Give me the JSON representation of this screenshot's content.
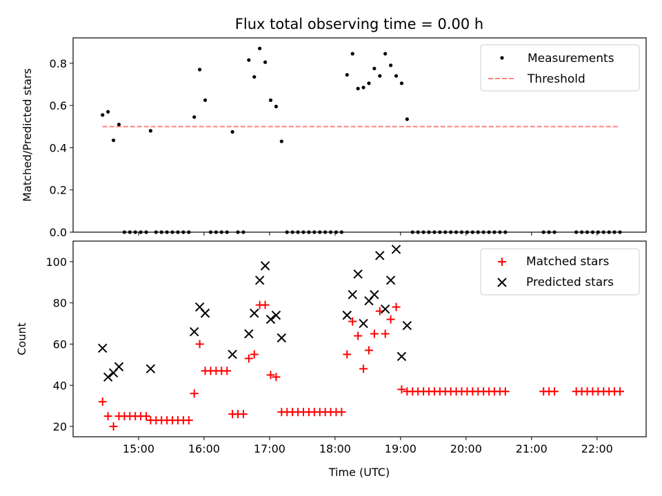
{
  "chart_data": [
    {
      "type": "scatter",
      "title": "Flux total observing time = 0.00 h",
      "ylabel": "Matched/Predicted stars",
      "xlabel": "",
      "xlim": [
        "14:00",
        "22:45"
      ],
      "ylim": [
        0,
        0.92
      ],
      "yticks": [
        "0.0",
        "0.2",
        "0.4",
        "0.6",
        "0.8"
      ],
      "legend": {
        "placement": "top-right",
        "entries": [
          "Measurements",
          "Threshold"
        ]
      },
      "threshold": {
        "value": 0.5,
        "x_start": "14:27",
        "x_end": "22:21",
        "color": "#ff7f7f"
      },
      "series": [
        {
          "name": "Measurements",
          "color": "#000000",
          "points": [
            [
              "14:27",
              0.555
            ],
            [
              "14:32",
              0.57
            ],
            [
              "14:37",
              0.435
            ],
            [
              "14:42",
              0.51
            ],
            [
              "14:47",
              0
            ],
            [
              "14:52",
              0
            ],
            [
              "14:57",
              0
            ],
            [
              "15:02",
              0
            ],
            [
              "15:07",
              0
            ],
            [
              "15:11",
              0.48
            ],
            [
              "15:16",
              0
            ],
            [
              "15:21",
              0
            ],
            [
              "15:26",
              0
            ],
            [
              "15:31",
              0
            ],
            [
              "15:36",
              0
            ],
            [
              "15:41",
              0
            ],
            [
              "15:46",
              0
            ],
            [
              "15:51",
              0.545
            ],
            [
              "15:56",
              0.77
            ],
            [
              "16:01",
              0.625
            ],
            [
              "16:06",
              0
            ],
            [
              "16:11",
              0
            ],
            [
              "16:16",
              0
            ],
            [
              "16:21",
              0
            ],
            [
              "16:26",
              0.475
            ],
            [
              "16:31",
              0
            ],
            [
              "16:36",
              0
            ],
            [
              "16:41",
              0.815
            ],
            [
              "16:46",
              0.735
            ],
            [
              "16:51",
              0.87
            ],
            [
              "16:56",
              0.805
            ],
            [
              "17:01",
              0.625
            ],
            [
              "17:06",
              0.595
            ],
            [
              "17:11",
              0.43
            ],
            [
              "17:16",
              0
            ],
            [
              "17:21",
              0
            ],
            [
              "17:26",
              0
            ],
            [
              "17:31",
              0
            ],
            [
              "17:36",
              0
            ],
            [
              "17:41",
              0
            ],
            [
              "17:46",
              0
            ],
            [
              "17:51",
              0
            ],
            [
              "17:56",
              0
            ],
            [
              "18:01",
              0
            ],
            [
              "18:06",
              0
            ],
            [
              "18:11",
              0.745
            ],
            [
              "18:16",
              0.845
            ],
            [
              "18:21",
              0.68
            ],
            [
              "18:26",
              0.685
            ],
            [
              "18:31",
              0.705
            ],
            [
              "18:36",
              0.775
            ],
            [
              "18:41",
              0.74
            ],
            [
              "18:46",
              0.845
            ],
            [
              "18:51",
              0.79
            ],
            [
              "18:56",
              0.74
            ],
            [
              "19:01",
              0.705
            ],
            [
              "19:06",
              0.535
            ],
            [
              "19:11",
              0
            ],
            [
              "19:16",
              0
            ],
            [
              "19:21",
              0
            ],
            [
              "19:26",
              0
            ],
            [
              "19:31",
              0
            ],
            [
              "19:36",
              0
            ],
            [
              "19:41",
              0
            ],
            [
              "19:46",
              0
            ],
            [
              "19:51",
              0
            ],
            [
              "19:56",
              0
            ],
            [
              "20:01",
              0
            ],
            [
              "20:06",
              0
            ],
            [
              "20:11",
              0
            ],
            [
              "20:16",
              0
            ],
            [
              "20:21",
              0
            ],
            [
              "20:26",
              0
            ],
            [
              "20:31",
              0
            ],
            [
              "20:36",
              0
            ],
            [
              "21:11",
              0
            ],
            [
              "21:16",
              0
            ],
            [
              "21:21",
              0
            ],
            [
              "21:41",
              0
            ],
            [
              "21:46",
              0
            ],
            [
              "21:51",
              0
            ],
            [
              "21:56",
              0
            ],
            [
              "22:01",
              0
            ],
            [
              "22:06",
              0
            ],
            [
              "22:11",
              0
            ],
            [
              "22:16",
              0
            ],
            [
              "22:21",
              0
            ]
          ]
        }
      ]
    },
    {
      "type": "scatter",
      "title": "",
      "ylabel": "Count",
      "xlabel": "Time (UTC)",
      "xlim": [
        "14:00",
        "22:45"
      ],
      "ylim": [
        15,
        110
      ],
      "xticks": [
        "15:00",
        "16:00",
        "17:00",
        "18:00",
        "19:00",
        "20:00",
        "21:00",
        "22:00"
      ],
      "yticks": [
        "20",
        "40",
        "60",
        "80",
        "100"
      ],
      "legend": {
        "placement": "top-right",
        "entries": [
          "Matched stars",
          "Predicted stars"
        ]
      },
      "series": [
        {
          "name": "Matched stars",
          "marker": "plus",
          "color": "#ff0000",
          "points": [
            [
              "14:27",
              32
            ],
            [
              "14:32",
              25
            ],
            [
              "14:37",
              20
            ],
            [
              "14:42",
              25
            ],
            [
              "14:47",
              25
            ],
            [
              "14:52",
              25
            ],
            [
              "14:57",
              25
            ],
            [
              "15:02",
              25
            ],
            [
              "15:07",
              25
            ],
            [
              "15:11",
              23
            ],
            [
              "15:16",
              23
            ],
            [
              "15:21",
              23
            ],
            [
              "15:26",
              23
            ],
            [
              "15:31",
              23
            ],
            [
              "15:36",
              23
            ],
            [
              "15:41",
              23
            ],
            [
              "15:46",
              23
            ],
            [
              "15:51",
              36
            ],
            [
              "15:56",
              60
            ],
            [
              "16:01",
              47
            ],
            [
              "16:06",
              47
            ],
            [
              "16:11",
              47
            ],
            [
              "16:16",
              47
            ],
            [
              "16:21",
              47
            ],
            [
              "16:26",
              26
            ],
            [
              "16:31",
              26
            ],
            [
              "16:36",
              26
            ],
            [
              "16:41",
              53
            ],
            [
              "16:46",
              55
            ],
            [
              "16:51",
              79
            ],
            [
              "16:56",
              79
            ],
            [
              "17:01",
              45
            ],
            [
              "17:06",
              44
            ],
            [
              "17:11",
              27
            ],
            [
              "17:16",
              27
            ],
            [
              "17:21",
              27
            ],
            [
              "17:26",
              27
            ],
            [
              "17:31",
              27
            ],
            [
              "17:36",
              27
            ],
            [
              "17:41",
              27
            ],
            [
              "17:46",
              27
            ],
            [
              "17:51",
              27
            ],
            [
              "17:56",
              27
            ],
            [
              "18:01",
              27
            ],
            [
              "18:06",
              27
            ],
            [
              "18:11",
              55
            ],
            [
              "18:16",
              71
            ],
            [
              "18:21",
              64
            ],
            [
              "18:26",
              48
            ],
            [
              "18:31",
              57
            ],
            [
              "18:36",
              65
            ],
            [
              "18:41",
              76
            ],
            [
              "18:46",
              65
            ],
            [
              "18:51",
              72
            ],
            [
              "18:56",
              78
            ],
            [
              "19:01",
              38
            ],
            [
              "19:06",
              37
            ],
            [
              "19:11",
              37
            ],
            [
              "19:16",
              37
            ],
            [
              "19:21",
              37
            ],
            [
              "19:26",
              37
            ],
            [
              "19:31",
              37
            ],
            [
              "19:36",
              37
            ],
            [
              "19:41",
              37
            ],
            [
              "19:46",
              37
            ],
            [
              "19:51",
              37
            ],
            [
              "19:56",
              37
            ],
            [
              "20:01",
              37
            ],
            [
              "20:06",
              37
            ],
            [
              "20:11",
              37
            ],
            [
              "20:16",
              37
            ],
            [
              "20:21",
              37
            ],
            [
              "20:26",
              37
            ],
            [
              "20:31",
              37
            ],
            [
              "20:36",
              37
            ],
            [
              "21:11",
              37
            ],
            [
              "21:16",
              37
            ],
            [
              "21:21",
              37
            ],
            [
              "21:41",
              37
            ],
            [
              "21:46",
              37
            ],
            [
              "21:51",
              37
            ],
            [
              "21:56",
              37
            ],
            [
              "22:01",
              37
            ],
            [
              "22:06",
              37
            ],
            [
              "22:11",
              37
            ],
            [
              "22:16",
              37
            ],
            [
              "22:21",
              37
            ]
          ]
        },
        {
          "name": "Predicted stars",
          "marker": "x",
          "color": "#000000",
          "points": [
            [
              "14:27",
              58
            ],
            [
              "14:32",
              44
            ],
            [
              "14:37",
              46
            ],
            [
              "14:42",
              49
            ],
            [
              "15:11",
              48
            ],
            [
              "15:51",
              66
            ],
            [
              "15:56",
              78
            ],
            [
              "16:01",
              75
            ],
            [
              "16:26",
              55
            ],
            [
              "16:41",
              65
            ],
            [
              "16:46",
              75
            ],
            [
              "16:51",
              91
            ],
            [
              "16:56",
              98
            ],
            [
              "17:01",
              72
            ],
            [
              "17:06",
              74
            ],
            [
              "17:11",
              63
            ],
            [
              "18:11",
              74
            ],
            [
              "18:16",
              84
            ],
            [
              "18:21",
              94
            ],
            [
              "18:26",
              70
            ],
            [
              "18:31",
              81
            ],
            [
              "18:36",
              84
            ],
            [
              "18:41",
              103
            ],
            [
              "18:46",
              77
            ],
            [
              "18:51",
              91
            ],
            [
              "18:56",
              106
            ],
            [
              "19:01",
              54
            ],
            [
              "19:06",
              69
            ]
          ]
        }
      ]
    }
  ]
}
